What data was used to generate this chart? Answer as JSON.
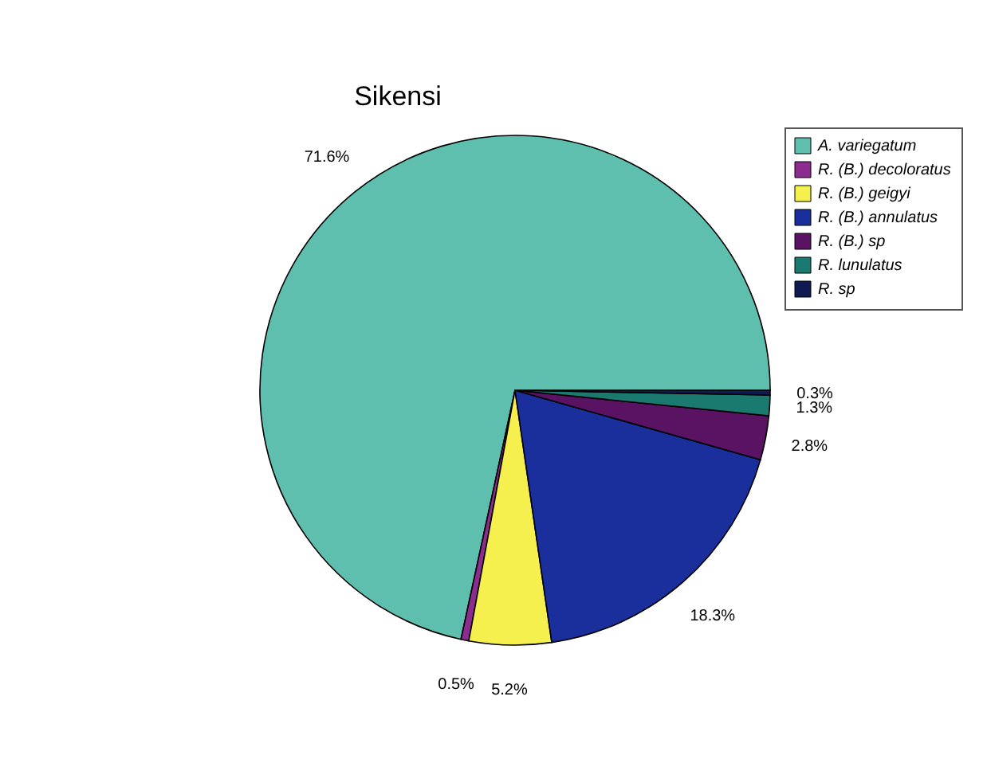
{
  "chart_data": {
    "type": "pie",
    "title": "Sikensi",
    "categories": [
      "A. variegatum",
      "R. (B.) decoloratus",
      "R. (B.) geigyi",
      "R. (B.) annulatus",
      "R. (B.) sp",
      "R. lunulatus",
      "R. sp"
    ],
    "values": [
      71.6,
      0.5,
      5.2,
      18.3,
      2.8,
      1.3,
      0.3
    ],
    "colors": [
      "#5fbfae",
      "#8c2c8e",
      "#f6f04e",
      "#1a2e9c",
      "#5a1262",
      "#1b7a70",
      "#0f1a52"
    ],
    "value_labels": [
      "71.6%",
      "0.5%",
      "5.2%",
      "18.3%",
      "2.8%",
      "1.3%",
      "0.3%"
    ],
    "legend": "top right"
  }
}
